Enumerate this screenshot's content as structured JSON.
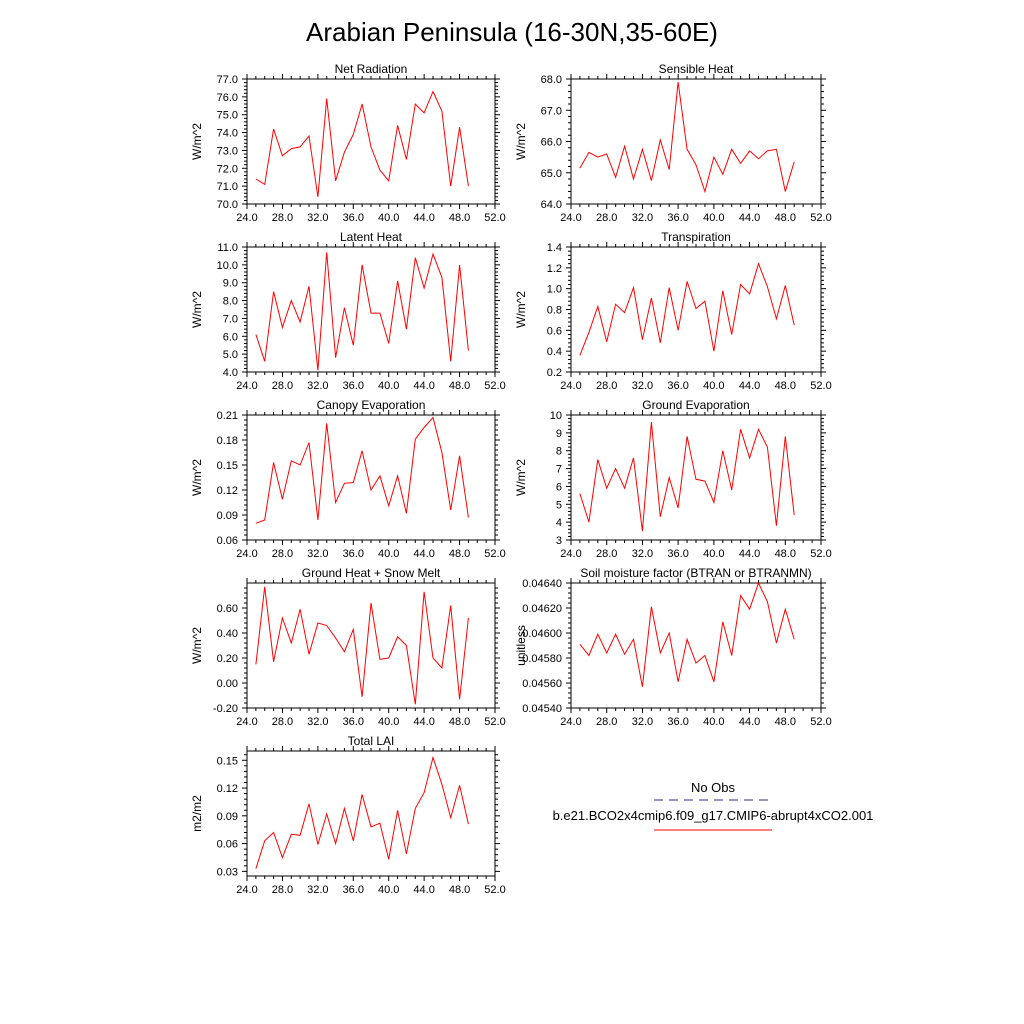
{
  "figure": {
    "title": "Arabian Peninsula (16-30N,35-60E)"
  },
  "chart_data": [
    {
      "type": "line",
      "title": "Net Radiation",
      "ylabel": "W/m^2",
      "xlim": [
        24,
        52
      ],
      "ylim": [
        70,
        77
      ],
      "xticks": [
        "24.0",
        "28.0",
        "32.0",
        "36.0",
        "40.0",
        "44.0",
        "48.0",
        "52.0"
      ],
      "xtick_values": [
        24,
        28,
        32,
        36,
        40,
        44,
        48,
        52
      ],
      "yticks": [
        "70.0",
        "71.0",
        "72.0",
        "73.0",
        "74.0",
        "75.0",
        "76.0",
        "77.0"
      ],
      "ytick_values": [
        70,
        71,
        72,
        73,
        74,
        75,
        76,
        77
      ],
      "series": [
        {
          "color": "#ff0000",
          "x": [
            25,
            26,
            27,
            28,
            29,
            30,
            31,
            32,
            33,
            34,
            35,
            36,
            37,
            38,
            39,
            40,
            41,
            42,
            43,
            44,
            45,
            46,
            47,
            48,
            49
          ],
          "values": [
            71.4,
            71.1,
            74.2,
            72.7,
            73.1,
            73.2,
            73.8,
            70.4,
            75.9,
            71.3,
            72.9,
            73.9,
            75.6,
            73.2,
            71.9,
            71.3,
            74.4,
            72.5,
            75.6,
            75.1,
            76.3,
            75.2,
            71.0,
            74.3,
            71.0
          ]
        }
      ]
    },
    {
      "type": "line",
      "title": "Sensible Heat",
      "ylabel": "W/m^2",
      "xlim": [
        24,
        52
      ],
      "ylim": [
        64,
        68
      ],
      "xticks": [
        "24.0",
        "28.0",
        "32.0",
        "36.0",
        "40.0",
        "44.0",
        "48.0",
        "52.0"
      ],
      "xtick_values": [
        24,
        28,
        32,
        36,
        40,
        44,
        48,
        52
      ],
      "yticks": [
        "64.0",
        "65.0",
        "66.0",
        "67.0",
        "68.0"
      ],
      "ytick_values": [
        64,
        65,
        66,
        67,
        68
      ],
      "series": [
        {
          "color": "#ff0000",
          "x": [
            25,
            26,
            27,
            28,
            29,
            30,
            31,
            32,
            33,
            34,
            35,
            36,
            37,
            38,
            39,
            40,
            41,
            42,
            43,
            44,
            45,
            46,
            47,
            48,
            49
          ],
          "values": [
            65.15,
            65.65,
            65.5,
            65.6,
            64.85,
            65.85,
            64.8,
            65.75,
            64.75,
            66.05,
            65.1,
            67.9,
            65.75,
            65.25,
            64.4,
            65.5,
            64.95,
            65.75,
            65.3,
            65.7,
            65.45,
            65.7,
            65.75,
            64.4,
            65.35
          ]
        }
      ]
    },
    {
      "type": "line",
      "title": "Latent Heat",
      "ylabel": "W/m^2",
      "xlim": [
        24,
        52
      ],
      "ylim": [
        4,
        11
      ],
      "xticks": [
        "24.0",
        "28.0",
        "32.0",
        "36.0",
        "40.0",
        "44.0",
        "48.0",
        "52.0"
      ],
      "xtick_values": [
        24,
        28,
        32,
        36,
        40,
        44,
        48,
        52
      ],
      "yticks": [
        "4.0",
        "5.0",
        "6.0",
        "7.0",
        "8.0",
        "9.0",
        "10.0",
        "11.0"
      ],
      "ytick_values": [
        4,
        5,
        6,
        7,
        8,
        9,
        10,
        11
      ],
      "series": [
        {
          "color": "#ff0000",
          "x": [
            25,
            26,
            27,
            28,
            29,
            30,
            31,
            32,
            33,
            34,
            35,
            36,
            37,
            38,
            39,
            40,
            41,
            42,
            43,
            44,
            45,
            46,
            47,
            48,
            49
          ],
          "values": [
            6.1,
            4.6,
            8.5,
            6.5,
            8.0,
            6.8,
            8.8,
            4.1,
            10.7,
            4.8,
            7.6,
            5.5,
            10.0,
            7.3,
            7.3,
            5.6,
            9.1,
            6.4,
            10.4,
            8.7,
            10.6,
            9.3,
            4.6,
            10.0,
            5.2
          ]
        }
      ]
    },
    {
      "type": "line",
      "title": "Transpiration",
      "ylabel": "W/m^2",
      "xlim": [
        24,
        52
      ],
      "ylim": [
        0.2,
        1.4
      ],
      "xticks": [
        "24.0",
        "28.0",
        "32.0",
        "36.0",
        "40.0",
        "44.0",
        "48.0",
        "52.0"
      ],
      "xtick_values": [
        24,
        28,
        32,
        36,
        40,
        44,
        48,
        52
      ],
      "yticks": [
        "0.2",
        "0.4",
        "0.6",
        "0.8",
        "1.0",
        "1.2",
        "1.4"
      ],
      "ytick_values": [
        0.2,
        0.4,
        0.6,
        0.8,
        1.0,
        1.2,
        1.4
      ],
      "series": [
        {
          "color": "#ff0000",
          "x": [
            25,
            26,
            27,
            28,
            29,
            30,
            31,
            32,
            33,
            34,
            35,
            36,
            37,
            38,
            39,
            40,
            41,
            42,
            43,
            44,
            45,
            46,
            47,
            48,
            49
          ],
          "values": [
            0.36,
            0.58,
            0.83,
            0.49,
            0.85,
            0.77,
            1.01,
            0.51,
            0.91,
            0.48,
            1.01,
            0.6,
            1.07,
            0.81,
            0.88,
            0.4,
            0.98,
            0.56,
            1.04,
            0.95,
            1.24,
            1.02,
            0.71,
            1.03,
            0.65
          ]
        }
      ]
    },
    {
      "type": "line",
      "title": "Canopy Evaporation",
      "ylabel": "W/m^2",
      "xlim": [
        24,
        52
      ],
      "ylim": [
        0.06,
        0.21
      ],
      "xticks": [
        "24.0",
        "28.0",
        "32.0",
        "36.0",
        "40.0",
        "44.0",
        "48.0",
        "52.0"
      ],
      "xtick_values": [
        24,
        28,
        32,
        36,
        40,
        44,
        48,
        52
      ],
      "yticks": [
        "0.06",
        "0.09",
        "0.12",
        "0.15",
        "0.18",
        "0.21"
      ],
      "ytick_values": [
        0.06,
        0.09,
        0.12,
        0.15,
        0.18,
        0.21
      ],
      "series": [
        {
          "color": "#ff0000",
          "x": [
            25,
            26,
            27,
            28,
            29,
            30,
            31,
            32,
            33,
            34,
            35,
            36,
            37,
            38,
            39,
            40,
            41,
            42,
            43,
            44,
            45,
            46,
            47,
            48,
            49
          ],
          "values": [
            0.08,
            0.084,
            0.153,
            0.109,
            0.155,
            0.15,
            0.177,
            0.084,
            0.2,
            0.105,
            0.128,
            0.129,
            0.167,
            0.12,
            0.137,
            0.101,
            0.137,
            0.092,
            0.181,
            0.195,
            0.207,
            0.165,
            0.096,
            0.161,
            0.087
          ]
        }
      ]
    },
    {
      "type": "line",
      "title": "Ground Evaporation",
      "ylabel": "W/m^2",
      "xlim": [
        24,
        52
      ],
      "ylim": [
        3,
        10
      ],
      "xticks": [
        "24.0",
        "28.0",
        "32.0",
        "36.0",
        "40.0",
        "44.0",
        "48.0",
        "52.0"
      ],
      "xtick_values": [
        24,
        28,
        32,
        36,
        40,
        44,
        48,
        52
      ],
      "yticks": [
        "3",
        "4",
        "5",
        "6",
        "7",
        "8",
        "9",
        "10"
      ],
      "ytick_values": [
        3,
        4,
        5,
        6,
        7,
        8,
        9,
        10
      ],
      "series": [
        {
          "color": "#ff0000",
          "x": [
            25,
            26,
            27,
            28,
            29,
            30,
            31,
            32,
            33,
            34,
            35,
            36,
            37,
            38,
            39,
            40,
            41,
            42,
            43,
            44,
            45,
            46,
            47,
            48,
            49
          ],
          "values": [
            5.6,
            4.0,
            7.5,
            5.9,
            7.0,
            5.9,
            7.6,
            3.5,
            9.6,
            4.3,
            6.5,
            4.8,
            8.8,
            6.4,
            6.3,
            5.1,
            8.0,
            5.8,
            9.2,
            7.6,
            9.2,
            8.2,
            3.8,
            8.8,
            4.4
          ]
        }
      ]
    },
    {
      "type": "line",
      "title": "Ground Heat + Snow Melt",
      "ylabel": "W/m^2",
      "xlim": [
        24,
        52
      ],
      "ylim": [
        -0.2,
        0.8
      ],
      "xticks": [
        "24.0",
        "28.0",
        "32.0",
        "36.0",
        "40.0",
        "44.0",
        "48.0",
        "52.0"
      ],
      "xtick_values": [
        24,
        28,
        32,
        36,
        40,
        44,
        48,
        52
      ],
      "yticks": [
        "-0.20",
        "0.00",
        "0.20",
        "0.40",
        "0.60"
      ],
      "ytick_values": [
        -0.2,
        0.0,
        0.2,
        0.4,
        0.6
      ],
      "series": [
        {
          "color": "#ff0000",
          "x": [
            25,
            26,
            27,
            28,
            29,
            30,
            31,
            32,
            33,
            34,
            35,
            36,
            37,
            38,
            39,
            40,
            41,
            42,
            43,
            44,
            45,
            46,
            47,
            48,
            49
          ],
          "values": [
            0.15,
            0.77,
            0.17,
            0.52,
            0.32,
            0.59,
            0.23,
            0.48,
            0.46,
            0.36,
            0.25,
            0.43,
            -0.11,
            0.64,
            0.19,
            0.2,
            0.37,
            0.3,
            -0.17,
            0.73,
            0.2,
            0.12,
            0.62,
            -0.13,
            0.52
          ]
        }
      ]
    },
    {
      "type": "line",
      "title": "Soil moisture factor (BTRAN or BTRANMN)",
      "ylabel": "unitless",
      "xlim": [
        24,
        52
      ],
      "ylim": [
        0.0454,
        0.0464
      ],
      "xticks": [
        "24.0",
        "28.0",
        "32.0",
        "36.0",
        "40.0",
        "44.0",
        "48.0",
        "52.0"
      ],
      "xtick_values": [
        24,
        28,
        32,
        36,
        40,
        44,
        48,
        52
      ],
      "yticks": [
        "0.04540",
        "0.04560",
        "0.04580",
        "0.04600",
        "0.04620",
        "0.04640"
      ],
      "ytick_values": [
        0.0454,
        0.0456,
        0.0458,
        0.046,
        0.0462,
        0.0464
      ],
      "series": [
        {
          "color": "#ff0000",
          "x": [
            25,
            26,
            27,
            28,
            29,
            30,
            31,
            32,
            33,
            34,
            35,
            36,
            37,
            38,
            39,
            40,
            41,
            42,
            43,
            44,
            45,
            46,
            47,
            48,
            49
          ],
          "values": [
            0.04591,
            0.04582,
            0.04599,
            0.04584,
            0.04599,
            0.04583,
            0.04595,
            0.04557,
            0.04621,
            0.04584,
            0.046,
            0.04561,
            0.04595,
            0.04576,
            0.04582,
            0.04561,
            0.04609,
            0.04582,
            0.0463,
            0.04619,
            0.0464,
            0.04625,
            0.04592,
            0.04619,
            0.04595
          ]
        }
      ]
    },
    {
      "type": "line",
      "title": "Total LAI",
      "ylabel": "m2/m2",
      "xlim": [
        24,
        52
      ],
      "ylim": [
        0.025,
        0.16
      ],
      "xticks": [
        "24.0",
        "28.0",
        "32.0",
        "36.0",
        "40.0",
        "44.0",
        "48.0",
        "52.0"
      ],
      "xtick_values": [
        24,
        28,
        32,
        36,
        40,
        44,
        48,
        52
      ],
      "yticks": [
        "0.03",
        "0.06",
        "0.09",
        "0.12",
        "0.15"
      ],
      "ytick_values": [
        0.03,
        0.06,
        0.09,
        0.12,
        0.15
      ],
      "series": [
        {
          "color": "#ff0000",
          "x": [
            25,
            26,
            27,
            28,
            29,
            30,
            31,
            32,
            33,
            34,
            35,
            36,
            37,
            38,
            39,
            40,
            41,
            42,
            43,
            44,
            45,
            46,
            47,
            48,
            49
          ],
          "values": [
            0.033,
            0.063,
            0.072,
            0.045,
            0.07,
            0.069,
            0.103,
            0.059,
            0.092,
            0.06,
            0.098,
            0.063,
            0.113,
            0.078,
            0.082,
            0.043,
            0.096,
            0.049,
            0.098,
            0.115,
            0.153,
            0.124,
            0.088,
            0.123,
            0.081
          ]
        }
      ]
    }
  ],
  "legend": {
    "obs_label": "No Obs",
    "obs_color": "#2b2b8f",
    "model_label": "b.e21.BCO2x4cmip6.f09_g17.CMIP6-abrupt4xCO2.001",
    "model_color": "#ff0000"
  }
}
